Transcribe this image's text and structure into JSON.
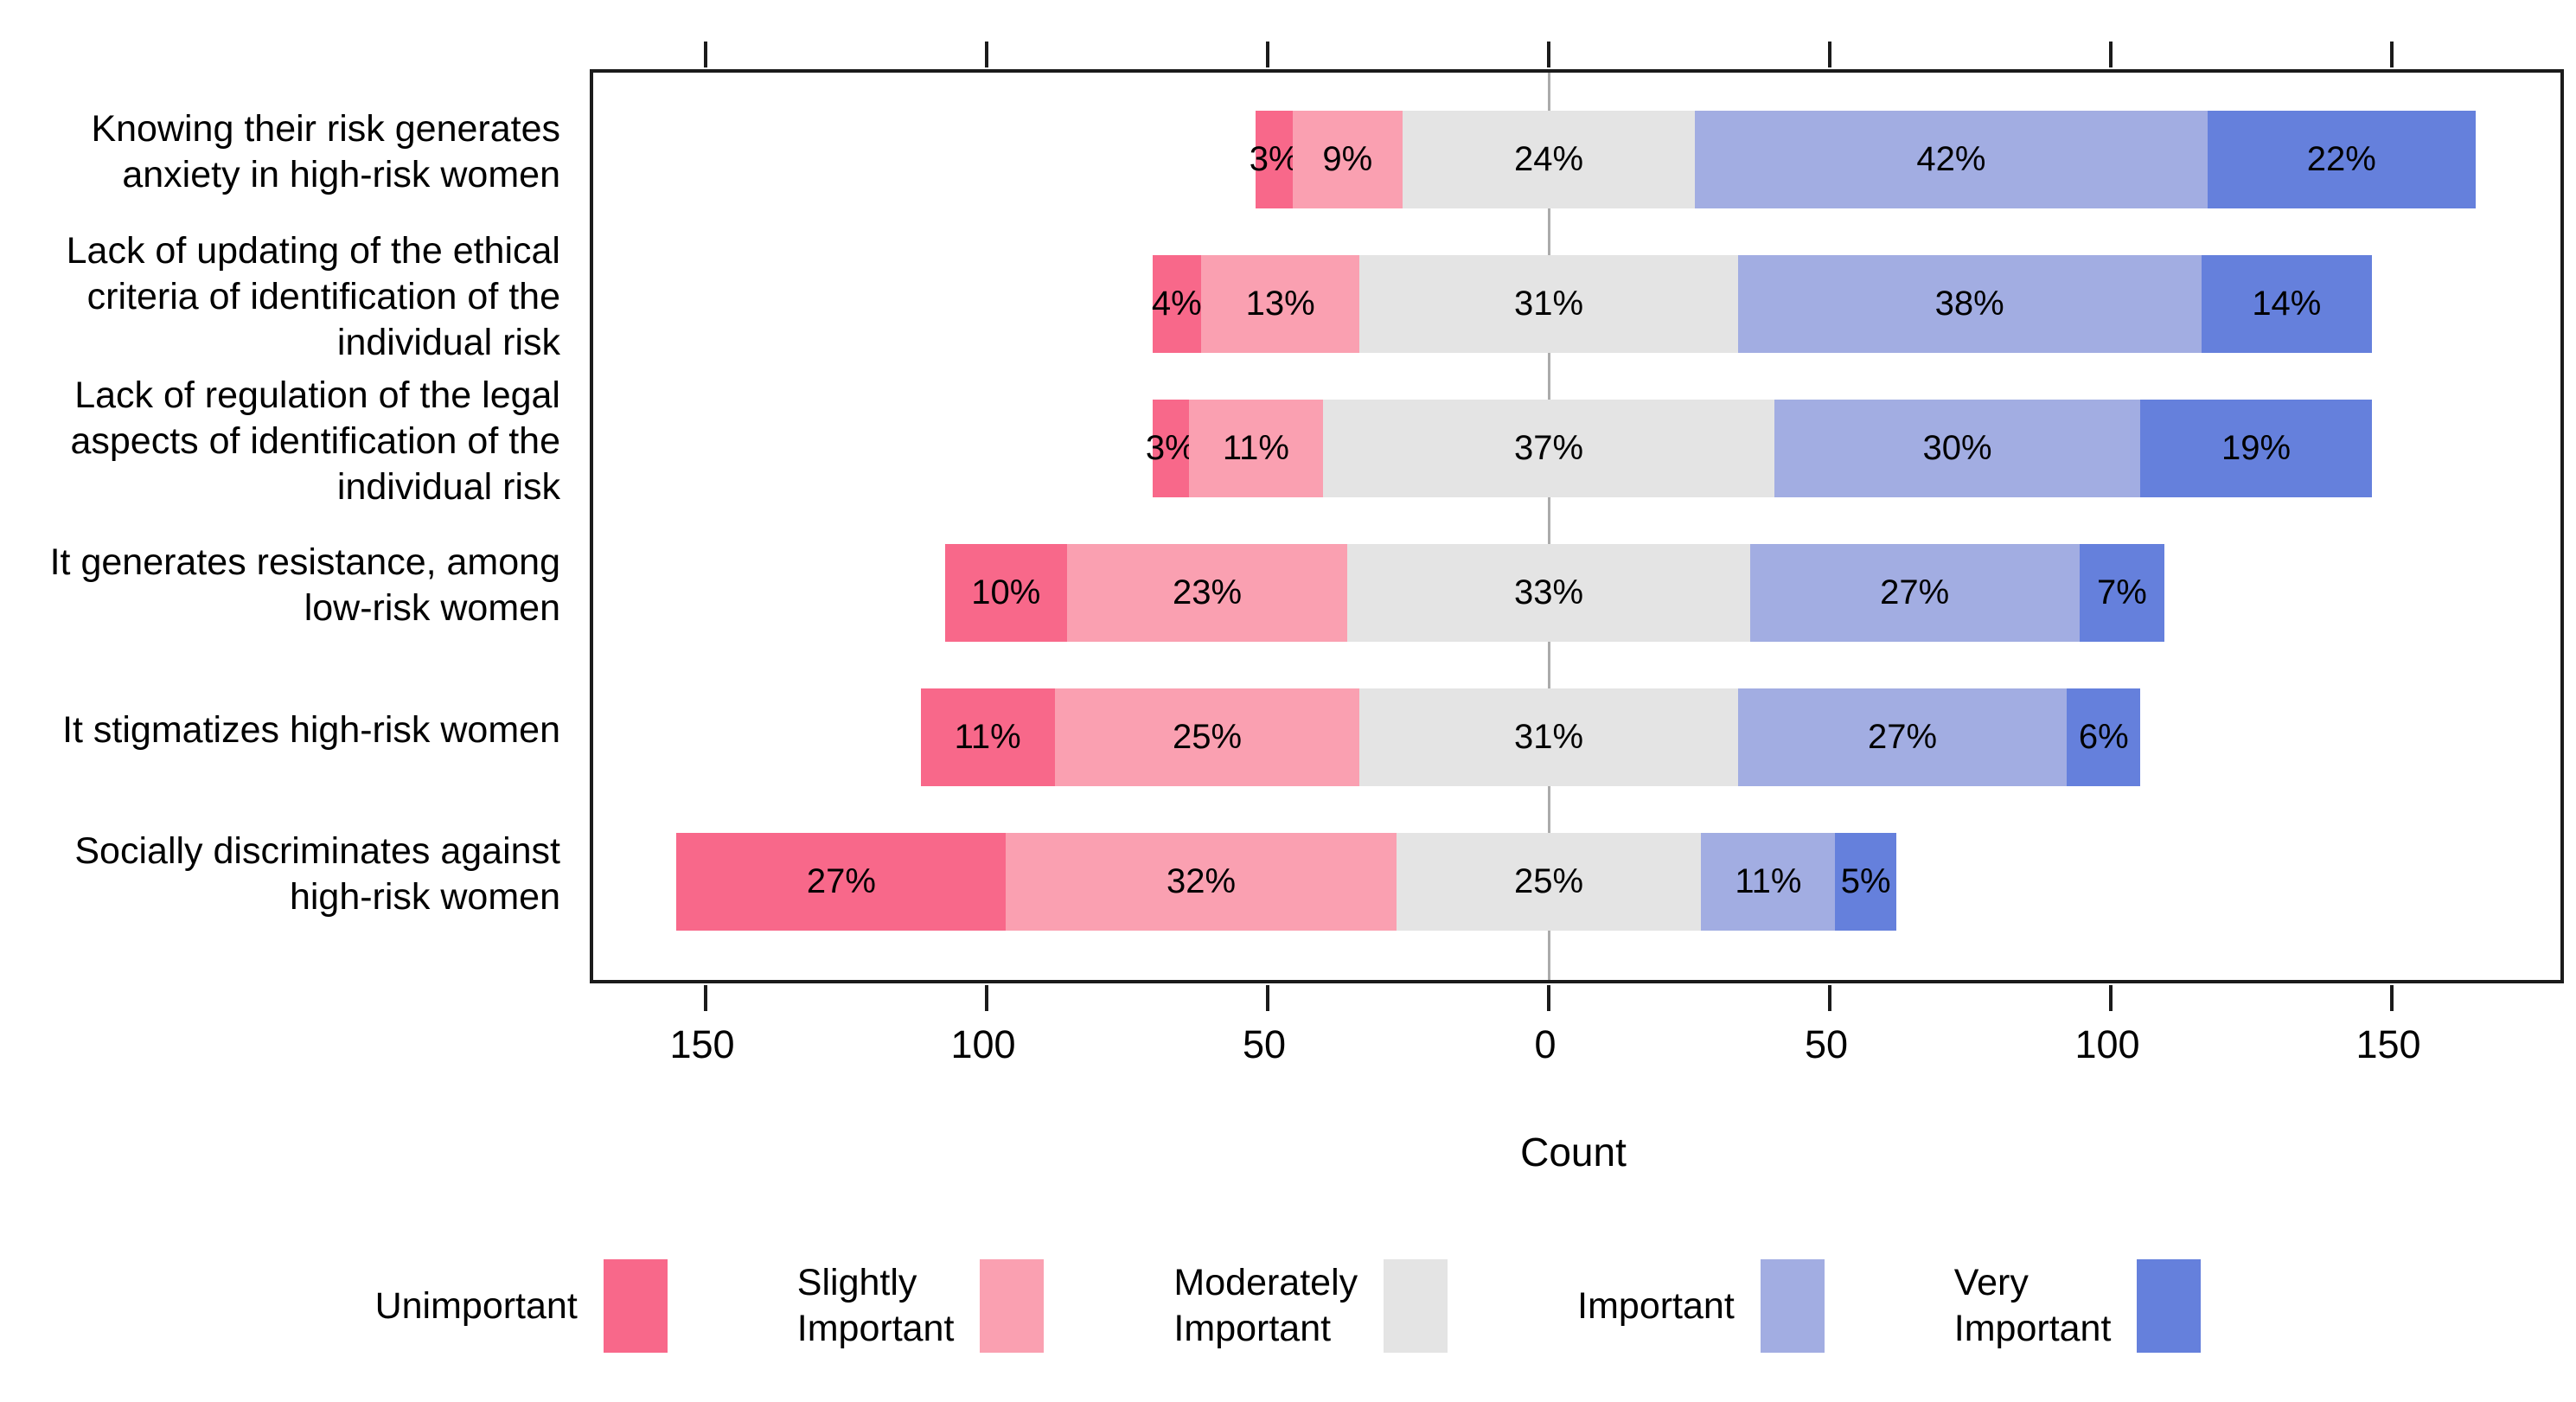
{
  "figure": {
    "background_color": "#ffffff",
    "axis_color": "#1b1b1b",
    "zero_line_color": "#ababab",
    "text_color": "#000000"
  },
  "chart_data": {
    "type": "bar",
    "variant": "diverging-stacked-likert",
    "orientation": "horizontal",
    "title": "",
    "xlabel": "Count",
    "ylabel": "",
    "x_tick_values": [
      -150,
      -100,
      -50,
      0,
      50,
      100,
      150
    ],
    "x_tick_labels": [
      "150",
      "100",
      "50",
      "0",
      "50",
      "100",
      "150"
    ],
    "axis_range_counts": [
      -170,
      180
    ],
    "total_respondents_estimate": 217,
    "neutral_centering": "Moderately Important segment centered on zero",
    "grid": "zero-line-only",
    "legend_position": "bottom",
    "levels": [
      {
        "name": "Unimportant",
        "label_lines": [
          "Unimportant"
        ],
        "color": "#F8688A"
      },
      {
        "name": "Slightly Important",
        "label_lines": [
          "Slightly",
          "Important"
        ],
        "color": "#FAA0B1"
      },
      {
        "name": "Moderately Important",
        "label_lines": [
          "Moderately",
          "Important"
        ],
        "color": "#E4E4E4"
      },
      {
        "name": "Important",
        "label_lines": [
          "Important"
        ],
        "color": "#A2ADE2"
      },
      {
        "name": "Very Important",
        "label_lines": [
          "Very",
          "Important"
        ],
        "color": "#6580DC"
      }
    ],
    "categories": [
      {
        "label_lines": [
          "Knowing their risk generates",
          "anxiety in high-risk women"
        ],
        "values_pct": [
          3,
          9,
          24,
          42,
          22
        ],
        "value_labels": [
          "3%",
          "9%",
          "24%",
          "42%",
          "22%"
        ]
      },
      {
        "label_lines": [
          "Lack of updating of the ethical",
          "criteria of identification of the",
          "individual risk"
        ],
        "values_pct": [
          4,
          13,
          31,
          38,
          14
        ],
        "value_labels": [
          "4%",
          "13%",
          "31%",
          "38%",
          "14%"
        ]
      },
      {
        "label_lines": [
          "Lack of regulation of the legal",
          "aspects of identification of the",
          "individual risk"
        ],
        "values_pct": [
          3,
          11,
          37,
          30,
          19
        ],
        "value_labels": [
          "3%",
          "11%",
          "37%",
          "30%",
          "19%"
        ]
      },
      {
        "label_lines": [
          "It generates resistance, among",
          "low-risk women"
        ],
        "values_pct": [
          10,
          23,
          33,
          27,
          7
        ],
        "value_labels": [
          "10%",
          "23%",
          "33%",
          "27%",
          "7%"
        ]
      },
      {
        "label_lines": [
          "It stigmatizes high-risk women"
        ],
        "values_pct": [
          11,
          25,
          31,
          27,
          6
        ],
        "value_labels": [
          "11%",
          "25%",
          "31%",
          "27%",
          "6%"
        ]
      },
      {
        "label_lines": [
          "Socially discriminates against",
          "high-risk women"
        ],
        "values_pct": [
          27,
          32,
          25,
          11,
          5
        ],
        "value_labels": [
          "27%",
          "32%",
          "25%",
          "11%",
          "5%"
        ]
      }
    ]
  }
}
